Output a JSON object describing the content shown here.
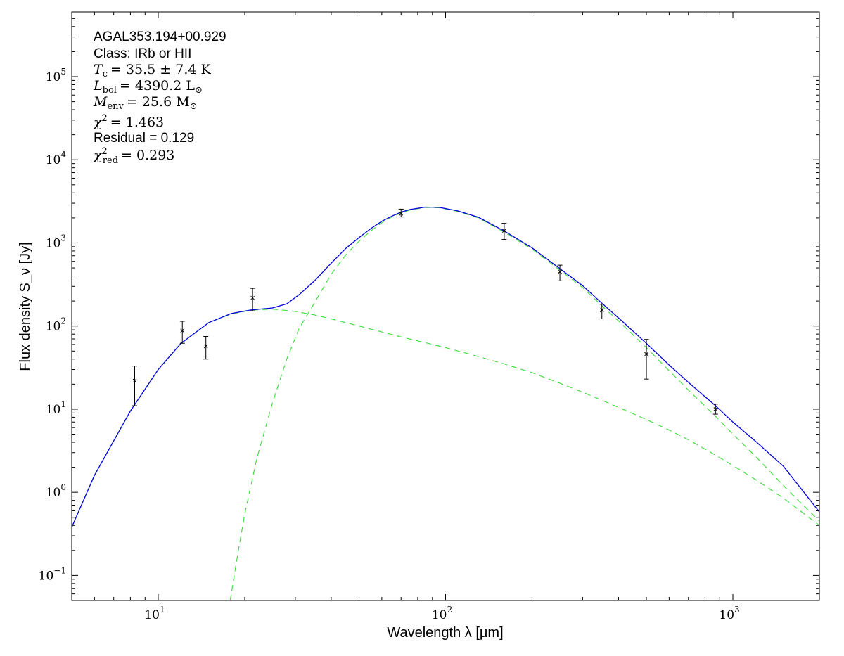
{
  "chart_data": {
    "type": "scatter",
    "x_scale": "log",
    "y_scale": "log",
    "xlim": [
      5,
      2000
    ],
    "ylim": [
      0.05,
      600000
    ],
    "grid": false,
    "xlabel": "Wavelength λ [μm]",
    "ylabel": "Flux density S_ν [Jy]",
    "x_ticks": [
      {
        "value": 10,
        "base": "10",
        "exp": "1"
      },
      {
        "value": 100,
        "base": "10",
        "exp": "2"
      },
      {
        "value": 1000,
        "base": "10",
        "exp": "3"
      }
    ],
    "y_ticks": [
      {
        "value": 0.1,
        "base": "10",
        "exp": "−1"
      },
      {
        "value": 1,
        "base": "10",
        "exp": "0"
      },
      {
        "value": 10,
        "base": "10",
        "exp": "1"
      },
      {
        "value": 100,
        "base": "10",
        "exp": "2"
      },
      {
        "value": 1000,
        "base": "10",
        "exp": "3"
      },
      {
        "value": 10000,
        "base": "10",
        "exp": "4"
      },
      {
        "value": 100000,
        "base": "10",
        "exp": "5"
      }
    ],
    "annotation": {
      "source": "AGAL353.194+00.929",
      "class": "Class: IRb or HII",
      "tc": "= 35.5 ± 7.4 K",
      "lbol": "= 4390.2 L",
      "menv": "= 25.6 M",
      "chi2": "= 1.463",
      "residual": "Residual = 0.129",
      "chi2red": "= 0.293"
    },
    "points": [
      {
        "x": 8.28,
        "y": 22,
        "lo": 11,
        "hi": 33
      },
      {
        "x": 12.13,
        "y": 88,
        "lo": 62,
        "hi": 114
      },
      {
        "x": 14.65,
        "y": 57,
        "lo": 40,
        "hi": 75
      },
      {
        "x": 21.3,
        "y": 218,
        "lo": 152,
        "hi": 284
      },
      {
        "x": 70,
        "y": 2250,
        "lo": 2050,
        "hi": 2550
      },
      {
        "x": 160,
        "y": 1400,
        "lo": 1100,
        "hi": 1720
      },
      {
        "x": 250,
        "y": 450,
        "lo": 350,
        "hi": 540
      },
      {
        "x": 350,
        "y": 155,
        "lo": 122,
        "hi": 183
      },
      {
        "x": 500,
        "y": 46,
        "lo": 23,
        "hi": 69
      },
      {
        "x": 870,
        "y": 10,
        "lo": 8.7,
        "hi": 11.5
      }
    ],
    "series": [
      {
        "role": "warm component",
        "color": "#44dd44",
        "style": "dashed",
        "x": [
          5,
          6,
          8,
          10,
          12,
          15,
          18,
          21,
          25,
          30,
          35,
          40,
          50,
          60,
          70,
          85,
          100,
          130,
          160,
          200,
          250,
          300,
          350,
          400,
          500,
          600,
          700,
          870,
          1000,
          1200,
          1500,
          2000
        ],
        "y": [
          0.38,
          1.6,
          9.5,
          30,
          62,
          110,
          140,
          155,
          160,
          150,
          136,
          122,
          100,
          85,
          74,
          63,
          55,
          43,
          35,
          27.5,
          20.5,
          16,
          12.8,
          10.5,
          7.5,
          5.6,
          4.3,
          2.8,
          2.1,
          1.42,
          0.85,
          0.4
        ]
      },
      {
        "role": "cold component",
        "color": "#44dd44",
        "style": "dashed",
        "x": [
          17.8,
          19,
          20,
          22,
          25,
          28,
          31,
          35,
          40,
          45,
          50,
          55,
          60,
          65,
          70,
          75,
          85,
          95,
          110,
          130,
          160,
          200,
          250,
          300,
          350,
          400,
          500,
          600,
          700,
          870,
          1000,
          1200,
          1500,
          2000
        ],
        "y": [
          0.05,
          0.2,
          0.55,
          2.5,
          12,
          40,
          95,
          190,
          420,
          720,
          1050,
          1400,
          1750,
          2050,
          2300,
          2480,
          2680,
          2650,
          2400,
          2000,
          1350,
          840,
          470,
          290,
          175,
          115,
          55,
          29,
          17,
          8.2,
          5,
          2.7,
          1.2,
          0.45
        ]
      },
      {
        "role": "total model",
        "color": "#0000dd",
        "style": "solid",
        "x": [
          5,
          6,
          8,
          10,
          12,
          15,
          18,
          21,
          25,
          28,
          31,
          35,
          40,
          45,
          50,
          55,
          60,
          65,
          70,
          75,
          85,
          95,
          110,
          130,
          160,
          200,
          250,
          300,
          350,
          400,
          500,
          600,
          700,
          870,
          1000,
          1200,
          1500,
          2000
        ],
        "y": [
          0.38,
          1.6,
          9.5,
          30,
          62,
          110,
          142,
          156,
          165,
          185,
          240,
          350,
          570,
          860,
          1160,
          1490,
          1820,
          2100,
          2350,
          2520,
          2700,
          2680,
          2440,
          2040,
          1390,
          870,
          490,
          306,
          188,
          125,
          62,
          34,
          21,
          11,
          7,
          4.1,
          2.05,
          0.58
        ]
      }
    ]
  }
}
